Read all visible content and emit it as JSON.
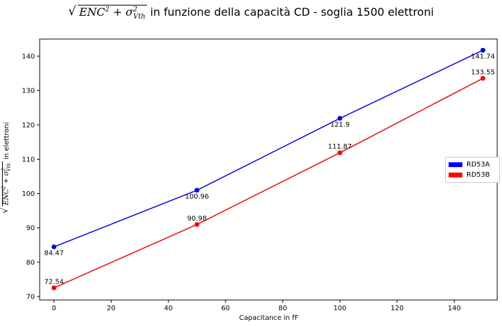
{
  "chart_data": {
    "type": "line",
    "title": {
      "formula_base": "ENC",
      "formula_power": "2",
      "formula_plus": "+",
      "formula_sigma": "σ",
      "formula_sigma_power": "2",
      "formula_sigma_sub": "Vth",
      "text": "in funzione della capacità CD - soglia 1500 elettroni"
    },
    "xlabel": "Capacitance in fF",
    "ylabel": {
      "formula_base": "ENC",
      "formula_power": "2",
      "formula_plus": "+",
      "formula_sigma": "σ",
      "formula_sigma_power": "2",
      "formula_sigma_sub": "Vth",
      "text": "in elettroni"
    },
    "xlim": [
      -5,
      155
    ],
    "ylim": [
      69,
      145
    ],
    "xticks": [
      0,
      20,
      40,
      60,
      80,
      100,
      120,
      140
    ],
    "yticks": [
      70,
      80,
      90,
      100,
      110,
      120,
      130,
      140
    ],
    "grid": false,
    "legend_position": "center-right",
    "x": [
      0,
      50,
      100,
      150
    ],
    "series": [
      {
        "name": "RD53A",
        "color": "#0000ff",
        "values": [
          84.47,
          100.96,
          121.9,
          141.74
        ],
        "labels": [
          "84.47",
          "100.96",
          "121.9",
          "141.74"
        ],
        "label_position": "below"
      },
      {
        "name": "RD53B",
        "color": "#ff0000",
        "values": [
          72.54,
          90.98,
          111.87,
          133.55
        ],
        "labels": [
          "72.54",
          "90.98",
          "111.87",
          "133.55"
        ],
        "label_position": "above"
      }
    ]
  }
}
